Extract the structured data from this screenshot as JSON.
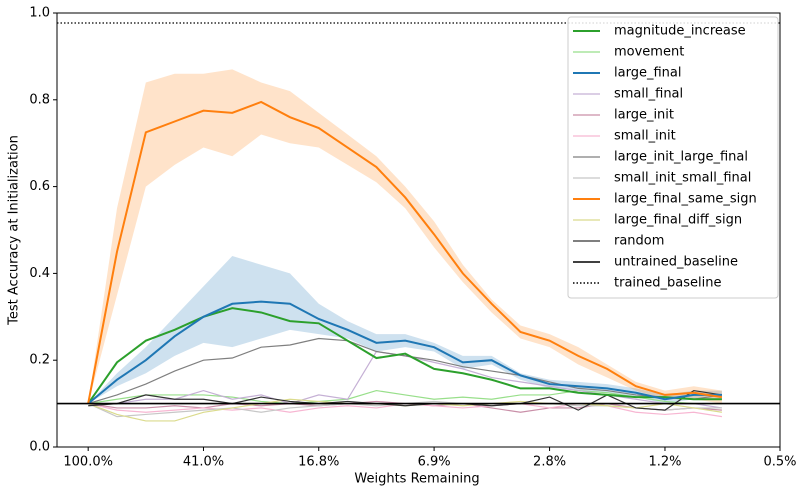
{
  "chart_data": {
    "type": "line",
    "xlabel": "Weights Remaining",
    "ylabel": "Test Accuracy at Initialization",
    "xscale": "log",
    "xlim": [
      127.3,
      0.472
    ],
    "xticks": [
      {
        "value": 100,
        "label": "100.0%"
      },
      {
        "value": 40.96,
        "label": "41.0%"
      },
      {
        "value": 16.78,
        "label": "16.8%"
      },
      {
        "value": 6.87,
        "label": "6.9%"
      },
      {
        "value": 2.81,
        "label": "2.8%"
      },
      {
        "value": 1.15,
        "label": "1.2%"
      },
      {
        "value": 0.472,
        "label": "0.5%"
      }
    ],
    "ylim": [
      0,
      1
    ],
    "yticks": [
      {
        "value": 0,
        "label": "0.0"
      },
      0.2,
      0.4,
      0.6,
      0.8,
      {
        "value": 1,
        "label": "1.0"
      }
    ],
    "legend": "upper right",
    "x": [
      100,
      80,
      64,
      51.2,
      40.96,
      32.77,
      26.21,
      20.97,
      16.78,
      13.42,
      10.74,
      8.59,
      6.87,
      5.5,
      4.4,
      3.52,
      2.81,
      2.25,
      1.8,
      1.44,
      1.15,
      0.92,
      0.74
    ],
    "series": [
      {
        "name": "magnitude_increase",
        "color": "#2ca02c",
        "linewidth": 2,
        "values": [
          0.1,
          0.195,
          0.245,
          0.27,
          0.3,
          0.32,
          0.31,
          0.29,
          0.285,
          0.245,
          0.205,
          0.215,
          0.18,
          0.17,
          0.155,
          0.135,
          0.135,
          0.125,
          0.12,
          0.115,
          0.115,
          0.11,
          0.11
        ]
      },
      {
        "name": "movement",
        "color": "#98df8a",
        "linewidth": 1.2,
        "values": [
          0.1,
          0.11,
          0.12,
          0.12,
          0.12,
          0.115,
          0.105,
          0.1,
          0.105,
          0.11,
          0.13,
          0.12,
          0.11,
          0.115,
          0.11,
          0.12,
          0.12,
          0.13,
          0.125,
          0.115,
          0.105,
          0.1,
          0.1
        ]
      },
      {
        "name": "large_final",
        "color": "#1f77b4",
        "linewidth": 2,
        "values": [
          0.1,
          0.155,
          0.2,
          0.255,
          0.3,
          0.33,
          0.335,
          0.33,
          0.295,
          0.27,
          0.24,
          0.245,
          0.23,
          0.195,
          0.2,
          0.165,
          0.145,
          0.14,
          0.135,
          0.125,
          0.11,
          0.12,
          0.12
        ],
        "band": {
          "upper": [
            0.1,
            0.17,
            0.23,
            0.3,
            0.37,
            0.44,
            0.42,
            0.4,
            0.33,
            0.29,
            0.26,
            0.26,
            0.24,
            0.21,
            0.21,
            0.17,
            0.155,
            0.15,
            0.145,
            0.135,
            0.12,
            0.13,
            0.13
          ],
          "lower": [
            0.1,
            0.14,
            0.17,
            0.21,
            0.24,
            0.23,
            0.25,
            0.27,
            0.26,
            0.25,
            0.22,
            0.23,
            0.22,
            0.18,
            0.19,
            0.155,
            0.135,
            0.13,
            0.125,
            0.115,
            0.1,
            0.11,
            0.11
          ]
        }
      },
      {
        "name": "small_final",
        "color": "#c5b0d5",
        "linewidth": 1.2,
        "values": [
          0.1,
          0.1,
          0.11,
          0.11,
          0.13,
          0.11,
          0.12,
          0.1,
          0.12,
          0.11,
          0.22,
          0.21,
          0.195,
          0.18,
          0.16,
          0.15,
          0.14,
          0.13,
          0.12,
          0.11,
          0.1,
          0.1,
          0.09
        ]
      },
      {
        "name": "large_init",
        "color": "#c98fa8",
        "linewidth": 1.2,
        "values": [
          0.1,
          0.09,
          0.09,
          0.095,
          0.09,
          0.1,
          0.095,
          0.1,
          0.095,
          0.1,
          0.105,
          0.1,
          0.095,
          0.1,
          0.09,
          0.08,
          0.09,
          0.09,
          0.1,
          0.09,
          0.085,
          0.09,
          0.085
        ]
      },
      {
        "name": "small_init",
        "color": "#f7b6d2",
        "linewidth": 1.2,
        "values": [
          0.1,
          0.085,
          0.08,
          0.085,
          0.09,
          0.085,
          0.09,
          0.08,
          0.09,
          0.095,
          0.09,
          0.1,
          0.095,
          0.09,
          0.095,
          0.1,
          0.09,
          0.1,
          0.095,
          0.08,
          0.075,
          0.08,
          0.07
        ]
      },
      {
        "name": "large_init_large_final",
        "color": "#7f7f7f",
        "linewidth": 1.2,
        "values": [
          0.1,
          0.12,
          0.145,
          0.175,
          0.2,
          0.205,
          0.23,
          0.235,
          0.25,
          0.245,
          0.22,
          0.21,
          0.2,
          0.185,
          0.175,
          0.165,
          0.15,
          0.135,
          0.13,
          0.12,
          0.115,
          0.11,
          0.12
        ]
      },
      {
        "name": "small_init_small_final",
        "color": "#c7c7c7",
        "linewidth": 1.2,
        "values": [
          0.1,
          0.07,
          0.075,
          0.08,
          0.085,
          0.09,
          0.08,
          0.09,
          0.095,
          0.1,
          0.095,
          0.1,
          0.105,
          0.1,
          0.095,
          0.1,
          0.1,
          0.095,
          0.095,
          0.09,
          0.085,
          0.09,
          0.09
        ]
      },
      {
        "name": "large_final_same_sign",
        "color": "#ff7f0e",
        "linewidth": 2,
        "values": [
          0.1,
          0.45,
          0.725,
          0.75,
          0.775,
          0.77,
          0.795,
          0.76,
          0.735,
          0.69,
          0.645,
          0.575,
          0.49,
          0.4,
          0.33,
          0.265,
          0.245,
          0.21,
          0.18,
          0.14,
          0.12,
          0.125,
          0.115
        ],
        "band": {
          "upper": [
            0.1,
            0.55,
            0.84,
            0.86,
            0.86,
            0.87,
            0.84,
            0.82,
            0.77,
            0.72,
            0.67,
            0.6,
            0.52,
            0.42,
            0.34,
            0.28,
            0.26,
            0.23,
            0.19,
            0.15,
            0.13,
            0.14,
            0.13
          ],
          "lower": [
            0.1,
            0.35,
            0.6,
            0.65,
            0.69,
            0.67,
            0.72,
            0.7,
            0.69,
            0.65,
            0.61,
            0.55,
            0.46,
            0.38,
            0.31,
            0.25,
            0.23,
            0.19,
            0.16,
            0.13,
            0.11,
            0.11,
            0.1
          ]
        }
      },
      {
        "name": "large_final_diff_sign",
        "color": "#dbdb8d",
        "linewidth": 1.2,
        "values": [
          0.1,
          0.075,
          0.06,
          0.06,
          0.08,
          0.09,
          0.1,
          0.11,
          0.105,
          0.1,
          0.1,
          0.095,
          0.1,
          0.095,
          0.1,
          0.105,
          0.1,
          0.1,
          0.095,
          0.09,
          0.1,
          0.09,
          0.08
        ]
      },
      {
        "name": "random",
        "color": "#333333",
        "linewidth": 1.2,
        "values": [
          0.095,
          0.1,
          0.12,
          0.11,
          0.11,
          0.1,
          0.115,
          0.105,
          0.1,
          0.105,
          0.1,
          0.095,
          0.1,
          0.1,
          0.095,
          0.1,
          0.115,
          0.085,
          0.12,
          0.09,
          0.085,
          0.13,
          0.12
        ]
      }
    ],
    "baselines": [
      {
        "name": "untrained_baseline",
        "color": "#000000",
        "style": "solid",
        "value": 0.1
      },
      {
        "name": "trained_baseline",
        "color": "#000000",
        "style": "dotted",
        "value": 0.977
      }
    ]
  }
}
